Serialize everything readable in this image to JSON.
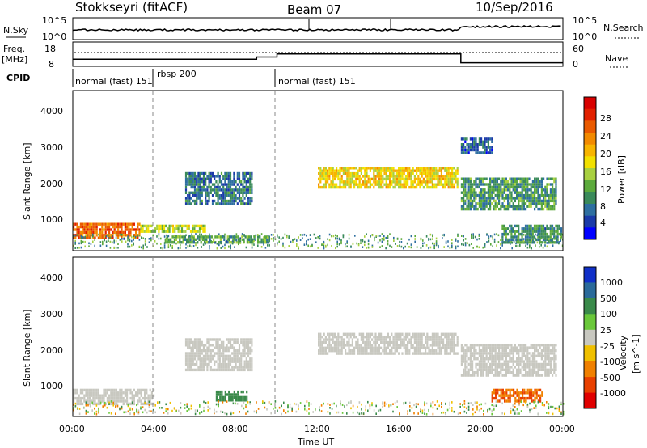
{
  "header": {
    "station": "Stokkseyri (fitACF)",
    "beam": "Beam 07",
    "date": "10/Sep/2016"
  },
  "noise_panel": {
    "left_label": "N.Sky",
    "right_label": "N.Search",
    "left_ticks": [
      "10^5",
      "10^0"
    ],
    "right_ticks": [
      "10^5",
      "10^0"
    ]
  },
  "freq_panel": {
    "left_label_1": "Freq.",
    "left_label_2": "[MHz]",
    "left_ticks": [
      "18",
      "8"
    ],
    "right_label": "Nave",
    "right_ticks": [
      "60",
      "0"
    ]
  },
  "cpid": {
    "label": "CPID",
    "segments": [
      {
        "start_h": 0.0,
        "text": "normal (fast) 151"
      },
      {
        "start_h": 3.85,
        "text": "rbsp  200"
      },
      {
        "start_h": 9.9,
        "text": "normal (fast) 151"
      }
    ]
  },
  "time_axis": {
    "title": "Time UT",
    "ticks": [
      "00:00",
      "04:00",
      "08:00",
      "12:00",
      "16:00",
      "20:00",
      "00:00"
    ]
  },
  "range_axis": {
    "title": "Slant Range [km]",
    "ticks": [
      "1000",
      "2000",
      "3000",
      "4000"
    ]
  },
  "power_colorbar": {
    "title": "Power [dB]",
    "ticks": [
      "4",
      "8",
      "12",
      "16",
      "20",
      "24",
      "28"
    ],
    "colors": [
      "#0000ff",
      "#1a3aa8",
      "#2e6fa0",
      "#3a8a5a",
      "#5caa3c",
      "#a8d040",
      "#f2e000",
      "#f7b400",
      "#f28a00",
      "#ea5a00",
      "#e22000",
      "#d80000"
    ]
  },
  "velocity_colorbar": {
    "title_1": "Velocity",
    "title_2": "[m s^-1]",
    "ticks": [
      "1000",
      "500",
      "100",
      "25",
      "-25",
      "-100",
      "-500",
      "-1000"
    ],
    "colors": [
      "#1030c8",
      "#2a6a9a",
      "#3a8a4a",
      "#6ac83a",
      "#c8c8c0",
      "#f0c000",
      "#f08000",
      "#e84000",
      "#e00000"
    ]
  },
  "chart_data": {
    "type": "heatmap",
    "title": "Stokkseyri (fitACF)  Beam 07  10/Sep/2016",
    "xlabel": "Time UT",
    "ylabel": "Slant Range [km]",
    "xlim_hours": [
      0,
      24
    ],
    "ylim_km": [
      180,
      4600
    ],
    "dashed_lines_hours": [
      3.85,
      9.9
    ],
    "power_regions": [
      {
        "t0": 0.0,
        "t1": 3.3,
        "r0": 550,
        "r1": 950,
        "power_db": 24
      },
      {
        "t0": 3.3,
        "t1": 6.5,
        "r0": 700,
        "r1": 900,
        "power_db": 14
      },
      {
        "t0": 4.5,
        "t1": 9.6,
        "r0": 400,
        "r1": 600,
        "power_db": 10
      },
      {
        "t0": 5.5,
        "t1": 8.8,
        "r0": 1450,
        "r1": 2350,
        "power_db": 6
      },
      {
        "t0": 12.0,
        "t1": 18.8,
        "r0": 1900,
        "r1": 2500,
        "power_db": 17
      },
      {
        "t0": 19.0,
        "t1": 23.7,
        "r0": 1300,
        "r1": 2200,
        "power_db": 9
      },
      {
        "t0": 19.0,
        "t1": 20.5,
        "r0": 2900,
        "r1": 3300,
        "power_db": 5
      },
      {
        "t0": 21.0,
        "t1": 23.9,
        "r0": 400,
        "r1": 900,
        "power_db": 8
      }
    ],
    "velocity_regions": [
      {
        "t0": 0.0,
        "t1": 4.0,
        "r0": 550,
        "r1": 950,
        "velocity": 0
      },
      {
        "t0": 5.5,
        "t1": 8.8,
        "r0": 1450,
        "r1": 2350,
        "velocity": 0
      },
      {
        "t0": 7.0,
        "t1": 8.5,
        "r0": 600,
        "r1": 900,
        "velocity": 80
      },
      {
        "t0": 12.0,
        "t1": 18.8,
        "r0": 1900,
        "r1": 2500,
        "velocity": 0
      },
      {
        "t0": 19.0,
        "t1": 23.7,
        "r0": 1300,
        "r1": 2200,
        "velocity": 0
      },
      {
        "t0": 20.5,
        "t1": 23.0,
        "r0": 600,
        "r1": 950,
        "velocity": -300
      }
    ],
    "noise_series_note": "log10 noise, sky vs search",
    "freq_steps": [
      {
        "t0": 0.0,
        "t1": 9.0,
        "freq_mhz": 10.2
      },
      {
        "t0": 9.0,
        "t1": 10.0,
        "freq_mhz": 11.2
      },
      {
        "t0": 10.0,
        "t1": 19.0,
        "freq_mhz": 12.6
      },
      {
        "t0": 19.0,
        "t1": 24.0,
        "freq_mhz": 8.6
      }
    ]
  }
}
